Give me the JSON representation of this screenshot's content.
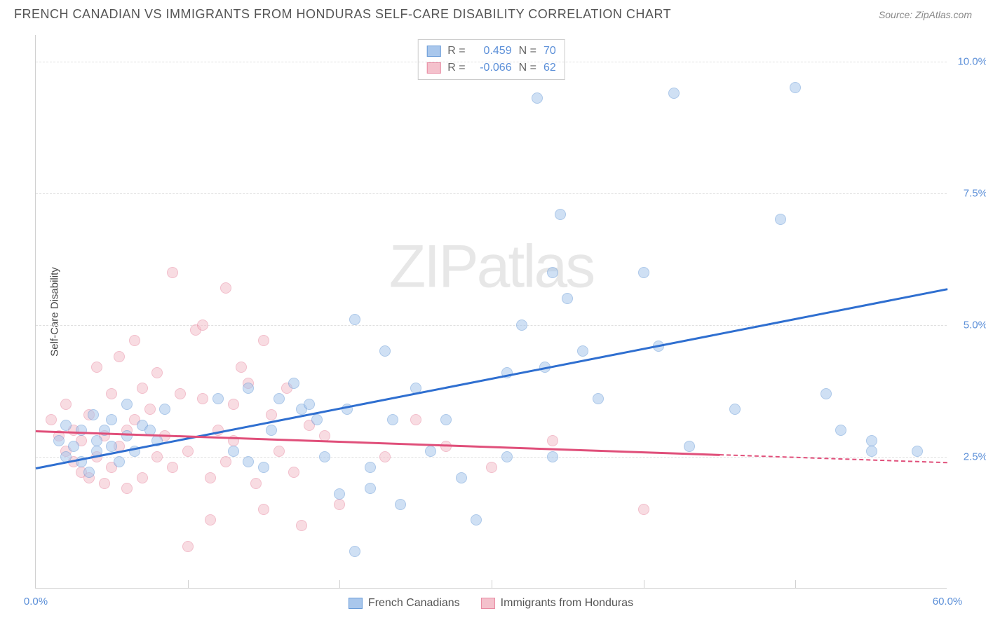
{
  "header": {
    "title": "FRENCH CANADIAN VS IMMIGRANTS FROM HONDURAS SELF-CARE DISABILITY CORRELATION CHART",
    "source_label": "Source: ZipAtlas.com"
  },
  "chart": {
    "type": "scatter",
    "watermark": "ZIPatlas",
    "ylabel": "Self-Care Disability",
    "xlim": [
      0,
      60
    ],
    "ylim": [
      0,
      10.5
    ],
    "x_min_label": "0.0%",
    "x_max_label": "60.0%",
    "yticks": [
      2.5,
      5.0,
      7.5,
      10.0
    ],
    "ytick_labels": [
      "2.5%",
      "5.0%",
      "7.5%",
      "10.0%"
    ],
    "xticks_minor": [
      10,
      20,
      30,
      40,
      50
    ],
    "background_color": "#ffffff",
    "grid_color": "#e0e0e0",
    "axis_color": "#d0d0d0",
    "series": {
      "blue": {
        "label": "French Canadians",
        "color_fill": "#a9c7ec",
        "color_stroke": "#6a9cd8",
        "trend_color": "#2f6fd0",
        "R": "0.459",
        "N": "70",
        "trend": {
          "x1": 0,
          "y1": 2.3,
          "x2": 60,
          "y2": 5.7
        },
        "points": [
          [
            1.5,
            2.8
          ],
          [
            2,
            3.1
          ],
          [
            2,
            2.5
          ],
          [
            2.5,
            2.7
          ],
          [
            3,
            3.0
          ],
          [
            3,
            2.4
          ],
          [
            3.5,
            2.2
          ],
          [
            3.8,
            3.3
          ],
          [
            4,
            2.8
          ],
          [
            4,
            2.6
          ],
          [
            4.5,
            3.0
          ],
          [
            5,
            2.7
          ],
          [
            5,
            3.2
          ],
          [
            5.5,
            2.4
          ],
          [
            6,
            2.9
          ],
          [
            6,
            3.5
          ],
          [
            6.5,
            2.6
          ],
          [
            7,
            3.1
          ],
          [
            7.5,
            3.0
          ],
          [
            8,
            2.8
          ],
          [
            8.5,
            3.4
          ],
          [
            12,
            3.6
          ],
          [
            13,
            2.6
          ],
          [
            14,
            3.8
          ],
          [
            14,
            2.4
          ],
          [
            15,
            2.3
          ],
          [
            15.5,
            3.0
          ],
          [
            16,
            3.6
          ],
          [
            17,
            3.9
          ],
          [
            17.5,
            3.4
          ],
          [
            18,
            3.5
          ],
          [
            18.5,
            3.2
          ],
          [
            19,
            2.5
          ],
          [
            20,
            1.8
          ],
          [
            20.5,
            3.4
          ],
          [
            21,
            5.1
          ],
          [
            21,
            0.7
          ],
          [
            22,
            2.3
          ],
          [
            22,
            1.9
          ],
          [
            23,
            4.5
          ],
          [
            23.5,
            3.2
          ],
          [
            24,
            1.6
          ],
          [
            25,
            3.8
          ],
          [
            26,
            2.6
          ],
          [
            27,
            3.2
          ],
          [
            28,
            2.1
          ],
          [
            29,
            1.3
          ],
          [
            31,
            4.1
          ],
          [
            31,
            2.5
          ],
          [
            32,
            5.0
          ],
          [
            33,
            9.3
          ],
          [
            33.5,
            4.2
          ],
          [
            34,
            6.0
          ],
          [
            34,
            2.5
          ],
          [
            34.5,
            7.1
          ],
          [
            35,
            5.5
          ],
          [
            36,
            4.5
          ],
          [
            37,
            3.6
          ],
          [
            40,
            6.0
          ],
          [
            41,
            4.6
          ],
          [
            42,
            9.4
          ],
          [
            43,
            2.7
          ],
          [
            46,
            3.4
          ],
          [
            49,
            7.0
          ],
          [
            50,
            9.5
          ],
          [
            52,
            3.7
          ],
          [
            53,
            3.0
          ],
          [
            55,
            2.8
          ],
          [
            55,
            2.6
          ],
          [
            58,
            2.6
          ]
        ]
      },
      "pink": {
        "label": "Immigrants from Honduras",
        "color_fill": "#f4c1cc",
        "color_stroke": "#e88aa2",
        "trend_color": "#e04f7a",
        "R": "-0.066",
        "N": "62",
        "trend_solid": {
          "x1": 0,
          "y1": 3.0,
          "x2": 45,
          "y2": 2.55
        },
        "trend_dash": {
          "x1": 45,
          "y1": 2.55,
          "x2": 60,
          "y2": 2.4
        },
        "points": [
          [
            1,
            3.2
          ],
          [
            1.5,
            2.9
          ],
          [
            2,
            2.6
          ],
          [
            2,
            3.5
          ],
          [
            2.5,
            2.4
          ],
          [
            2.5,
            3.0
          ],
          [
            3,
            2.2
          ],
          [
            3,
            2.8
          ],
          [
            3.5,
            2.1
          ],
          [
            3.5,
            3.3
          ],
          [
            4,
            2.5
          ],
          [
            4,
            4.2
          ],
          [
            4.5,
            2.0
          ],
          [
            4.5,
            2.9
          ],
          [
            5,
            3.7
          ],
          [
            5,
            2.3
          ],
          [
            5.5,
            4.4
          ],
          [
            5.5,
            2.7
          ],
          [
            6,
            3.0
          ],
          [
            6,
            1.9
          ],
          [
            6.5,
            4.7
          ],
          [
            6.5,
            3.2
          ],
          [
            7,
            2.1
          ],
          [
            7,
            3.8
          ],
          [
            7.5,
            3.4
          ],
          [
            8,
            2.5
          ],
          [
            8,
            4.1
          ],
          [
            8.5,
            2.9
          ],
          [
            9,
            6.0
          ],
          [
            9,
            2.3
          ],
          [
            9.5,
            3.7
          ],
          [
            10,
            2.6
          ],
          [
            10,
            0.8
          ],
          [
            10.5,
            4.9
          ],
          [
            11,
            3.6
          ],
          [
            11,
            5.0
          ],
          [
            11.5,
            2.1
          ],
          [
            11.5,
            1.3
          ],
          [
            12,
            3.0
          ],
          [
            12.5,
            2.4
          ],
          [
            12.5,
            5.7
          ],
          [
            13,
            3.5
          ],
          [
            13,
            2.8
          ],
          [
            13.5,
            4.2
          ],
          [
            14,
            3.9
          ],
          [
            14.5,
            2.0
          ],
          [
            15,
            4.7
          ],
          [
            15,
            1.5
          ],
          [
            15.5,
            3.3
          ],
          [
            16,
            2.6
          ],
          [
            16.5,
            3.8
          ],
          [
            17,
            2.2
          ],
          [
            17.5,
            1.2
          ],
          [
            18,
            3.1
          ],
          [
            19,
            2.9
          ],
          [
            20,
            1.6
          ],
          [
            23,
            2.5
          ],
          [
            25,
            3.2
          ],
          [
            27,
            2.7
          ],
          [
            30,
            2.3
          ],
          [
            34,
            2.8
          ],
          [
            40,
            1.5
          ]
        ]
      }
    },
    "legend_top": {
      "r_prefix": "R =",
      "n_prefix": "N ="
    }
  }
}
